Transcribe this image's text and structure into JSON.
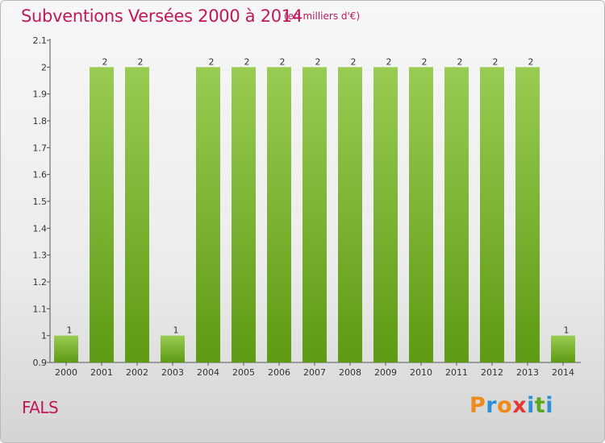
{
  "header": {
    "title": "Subventions Versées 2000 à 2014",
    "subtitle": "(en milliers d'€)"
  },
  "footer": {
    "town": "FALS",
    "logo_letters": [
      "P",
      "r",
      "o",
      "x",
      "i",
      "t",
      "i"
    ]
  },
  "colors": {
    "title": "#c2185b",
    "bar_top": "#99cc52",
    "bar_bottom": "#5e9a13",
    "logo": [
      "#ee8b1a",
      "#2f8fd6",
      "#ee8b1a",
      "#e53935",
      "#2f8fd6",
      "#58a822",
      "#2f8fd6"
    ]
  },
  "chart_data": {
    "type": "bar",
    "categories": [
      "2000",
      "2001",
      "2002",
      "2003",
      "2004",
      "2005",
      "2006",
      "2007",
      "2008",
      "2009",
      "2010",
      "2011",
      "2012",
      "2013",
      "2014"
    ],
    "values": [
      1,
      2,
      2,
      1,
      2,
      2,
      2,
      2,
      2,
      2,
      2,
      2,
      2,
      2,
      1
    ],
    "data_labels": [
      "1",
      "2",
      "2",
      "1",
      "2",
      "2",
      "2",
      "2",
      "2",
      "2",
      "2",
      "2",
      "2",
      "2",
      "1"
    ],
    "ylim": [
      0.9,
      2.1
    ],
    "yticks": [
      "0.9",
      "1",
      "1.1",
      "1.2",
      "1.3",
      "1.4",
      "1.5",
      "1.6",
      "1.7",
      "1.8",
      "1.9",
      "2",
      "2.1"
    ],
    "grid": false,
    "legend": "none"
  }
}
